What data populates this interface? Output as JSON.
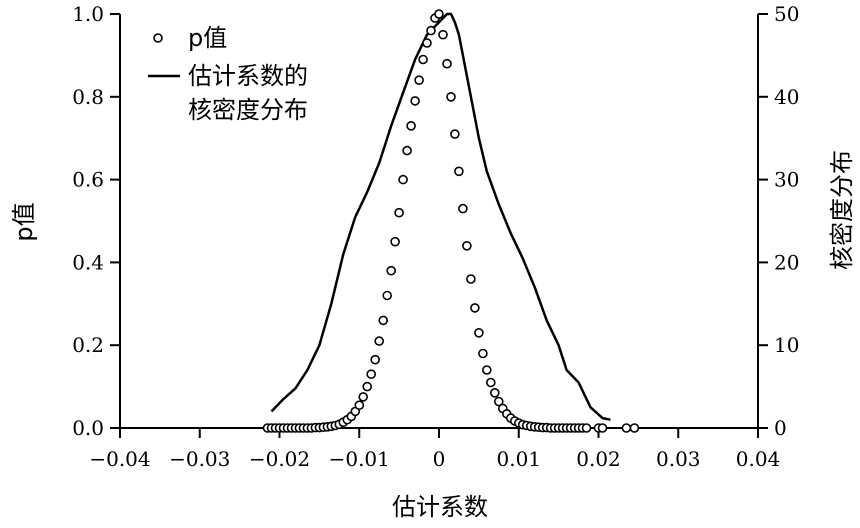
{
  "chart_data": {
    "type": "scatter+line",
    "xlabel": "估计系数",
    "ylabel_left": "p值",
    "ylabel_right": "核密度分布",
    "xlim": [
      -0.04,
      0.04
    ],
    "ylim_left": [
      0,
      1
    ],
    "ylim_right": [
      0,
      50
    ],
    "x_ticks": [
      "−0.04",
      "−0.03",
      "−0.02",
      "−0.01",
      "0",
      "0.01",
      "0.02",
      "0.03",
      "0.04"
    ],
    "y_left_ticks": [
      "0.0",
      "0.2",
      "0.4",
      "0.6",
      "0.8",
      "1.0"
    ],
    "y_right_ticks": [
      "0",
      "10",
      "20",
      "30",
      "40",
      "50"
    ],
    "grid": false,
    "legend": {
      "position": "top-left",
      "entries": [
        {
          "marker": "circle",
          "label": "p值"
        },
        {
          "marker": "line",
          "label_lines": [
            "估计系数的",
            "核密度分布"
          ]
        }
      ]
    },
    "series": [
      {
        "name": "p值",
        "kind": "scatter",
        "x": [
          -0.0215,
          -0.021,
          -0.0205,
          -0.02,
          -0.0195,
          -0.019,
          -0.0185,
          -0.018,
          -0.0175,
          -0.017,
          -0.0165,
          -0.016,
          -0.0155,
          -0.015,
          -0.0145,
          -0.014,
          -0.0135,
          -0.013,
          -0.0125,
          -0.012,
          -0.0115,
          -0.011,
          -0.0105,
          -0.01,
          -0.0095,
          -0.009,
          -0.0085,
          -0.008,
          -0.0075,
          -0.007,
          -0.0065,
          -0.006,
          -0.0055,
          -0.005,
          -0.0045,
          -0.004,
          -0.0035,
          -0.003,
          -0.0025,
          -0.002,
          -0.0015,
          -0.001,
          -0.0005,
          0,
          0.0005,
          0.001,
          0.0015,
          0.002,
          0.0025,
          0.003,
          0.0035,
          0.004,
          0.0045,
          0.005,
          0.0055,
          0.006,
          0.0065,
          0.007,
          0.0075,
          0.008,
          0.0085,
          0.009,
          0.0095,
          0.01,
          0.0105,
          0.011,
          0.0115,
          0.012,
          0.0125,
          0.013,
          0.0135,
          0.014,
          0.0145,
          0.015,
          0.0155,
          0.016,
          0.0165,
          0.017,
          0.0175,
          0.018,
          0.0185,
          0.02,
          0.0205,
          0.0235,
          0.0245
        ],
        "y": [
          0,
          0,
          0,
          0,
          0,
          0,
          0,
          0,
          0,
          0,
          0,
          0,
          0.001,
          0.001,
          0.002,
          0.003,
          0.004,
          0.006,
          0.009,
          0.014,
          0.02,
          0.028,
          0.04,
          0.055,
          0.075,
          0.1,
          0.13,
          0.165,
          0.21,
          0.26,
          0.32,
          0.38,
          0.45,
          0.52,
          0.6,
          0.67,
          0.73,
          0.79,
          0.84,
          0.89,
          0.93,
          0.96,
          0.99,
          1.0,
          0.95,
          0.88,
          0.8,
          0.71,
          0.62,
          0.53,
          0.44,
          0.36,
          0.29,
          0.23,
          0.18,
          0.14,
          0.11,
          0.085,
          0.064,
          0.047,
          0.034,
          0.024,
          0.017,
          0.012,
          0.008,
          0.006,
          0.004,
          0.003,
          0.002,
          0.001,
          0.001,
          0,
          0,
          0,
          0,
          0,
          0,
          0,
          0,
          0,
          0,
          0,
          0,
          0,
          0
        ]
      },
      {
        "name": "估计系数的核密度分布",
        "kind": "line",
        "axis": "right",
        "x": [
          -0.021,
          -0.0195,
          -0.018,
          -0.0165,
          -0.015,
          -0.0135,
          -0.012,
          -0.0105,
          -0.009,
          -0.0075,
          -0.006,
          -0.0045,
          -0.003,
          -0.0015,
          -0.0005,
          0,
          0.0005,
          0.001,
          0.0015,
          0.002,
          0.0025,
          0.003,
          0.004,
          0.005,
          0.006,
          0.0075,
          0.009,
          0.0105,
          0.012,
          0.0135,
          0.015,
          0.016,
          0.0175,
          0.019,
          0.0205,
          0.0215
        ],
        "y": [
          2,
          3.5,
          4.8,
          7,
          10,
          15,
          21,
          25.5,
          28.5,
          32,
          36.5,
          40.5,
          44.5,
          47.5,
          48.5,
          49,
          49.5,
          50,
          50,
          49,
          47.5,
          45,
          40,
          35,
          31,
          27,
          23.5,
          20.5,
          17,
          13,
          10,
          7,
          5.5,
          2.5,
          1.2,
          1
        ]
      }
    ]
  }
}
